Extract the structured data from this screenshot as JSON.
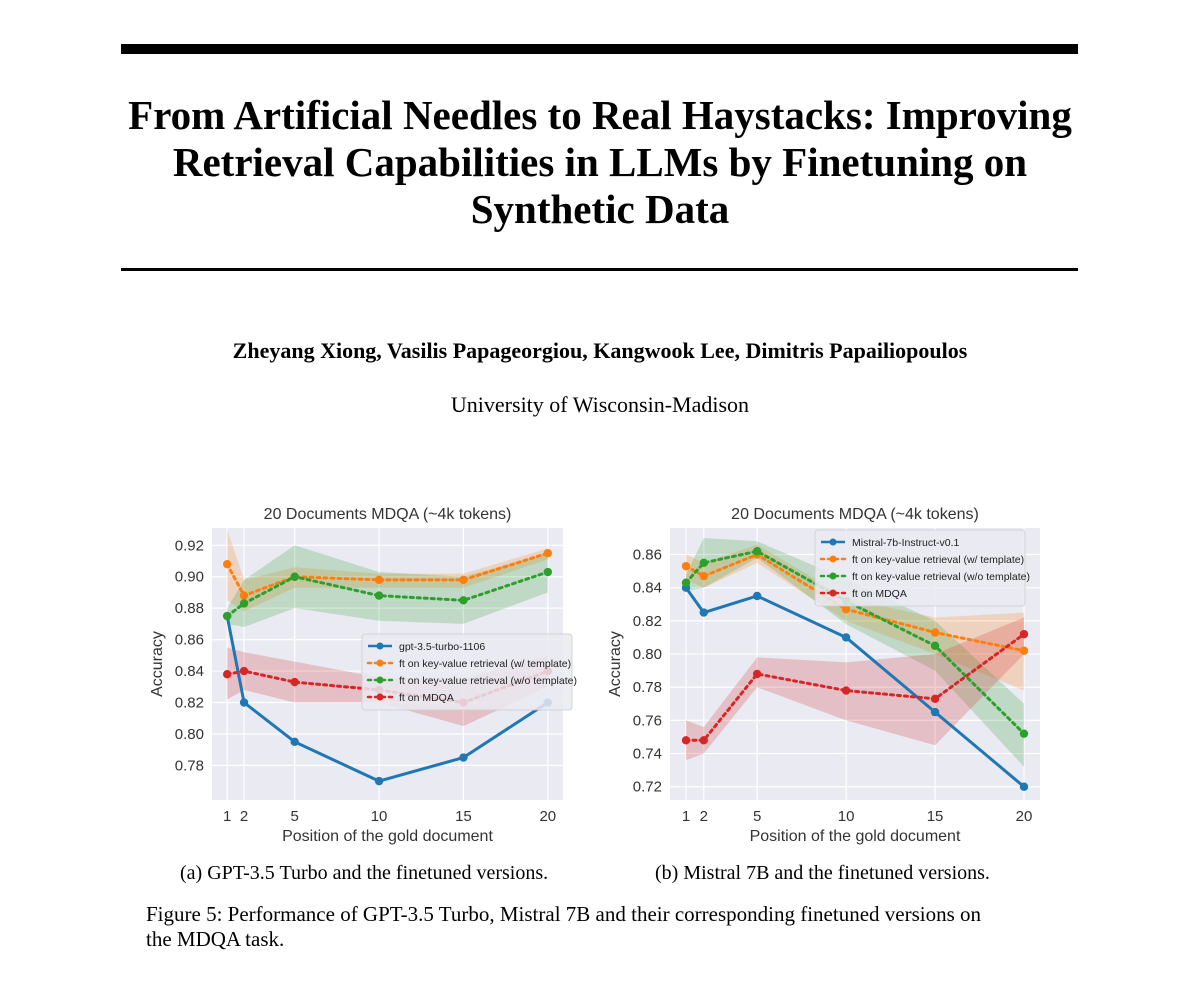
{
  "paper": {
    "title_lines": [
      "From Artificial Needles to Real Haystacks: Improving",
      "Retrieval Capabilities in LLMs by Finetuning on",
      "Synthetic Data"
    ],
    "authors": "Zheyang Xiong, Vasilis Papageorgiou, Kangwook Lee, Dimitris Papailiopoulos",
    "affiliation": "University of Wisconsin-Madison"
  },
  "figure": {
    "subcaption_a": "(a) GPT-3.5 Turbo and the finetuned versions.",
    "subcaption_b": "(b) Mistral 7B and the finetuned versions.",
    "caption_line1": "Figure 5: Performance of GPT-3.5 Turbo, Mistral 7B and their corresponding finetuned versions on",
    "caption_line2": "the MDQA task."
  },
  "colors": {
    "plot_bg": "#eaeaf2",
    "grid": "#ffffff",
    "blue": "#1f77b4",
    "orange": "#ff7f0e",
    "green": "#2ca02c",
    "red": "#d62728"
  },
  "chart_data": [
    {
      "id": "chartA",
      "type": "line",
      "title": "20 Documents MDQA (~4k tokens)",
      "xlabel": "Position of the gold document",
      "ylabel": "Accuracy",
      "x": [
        1,
        2,
        5,
        10,
        15,
        20
      ],
      "xticks": [
        1,
        2,
        5,
        10,
        15,
        20
      ],
      "xlim": [
        0.1,
        20.9
      ],
      "yticks": [
        0.78,
        0.8,
        0.82,
        0.84,
        0.86,
        0.88,
        0.9,
        0.92
      ],
      "ylim": [
        0.758,
        0.931
      ],
      "legend_position": "center-right",
      "series": [
        {
          "name": "gpt-3.5-turbo-1106",
          "color": "#1f77b4",
          "style": "solid",
          "values": [
            0.875,
            0.82,
            0.795,
            0.77,
            0.785,
            0.82
          ]
        },
        {
          "name": "ft on key-value retrieval (w/ template)",
          "color": "#ff7f0e",
          "style": "dotted",
          "values": [
            0.908,
            0.888,
            0.9,
            0.898,
            0.898,
            0.915
          ],
          "lower": [
            0.885,
            0.878,
            0.893,
            0.893,
            0.893,
            0.911
          ],
          "upper": [
            0.93,
            0.898,
            0.906,
            0.902,
            0.902,
            0.918
          ]
        },
        {
          "name": "ft on key-value retrieval (w/o template)",
          "color": "#2ca02c",
          "style": "dotted",
          "values": [
            0.875,
            0.883,
            0.9,
            0.888,
            0.885,
            0.903
          ],
          "lower": [
            0.87,
            0.868,
            0.88,
            0.872,
            0.87,
            0.89
          ],
          "upper": [
            0.88,
            0.898,
            0.92,
            0.903,
            0.9,
            0.915
          ]
        },
        {
          "name": "ft on MDQA",
          "color": "#d62728",
          "style": "dotted",
          "values": [
            0.838,
            0.84,
            0.833,
            0.828,
            0.82,
            0.84
          ],
          "lower": [
            0.822,
            0.828,
            0.82,
            0.82,
            0.805,
            0.83
          ],
          "upper": [
            0.855,
            0.852,
            0.846,
            0.836,
            0.835,
            0.85
          ]
        }
      ]
    },
    {
      "id": "chartB",
      "type": "line",
      "title": "20 Documents MDQA (~4k tokens)",
      "xlabel": "Position of the gold document",
      "ylabel": "Accuracy",
      "x": [
        1,
        2,
        5,
        10,
        15,
        20
      ],
      "xticks": [
        1,
        2,
        5,
        10,
        15,
        20
      ],
      "xlim": [
        0.1,
        20.9
      ],
      "yticks": [
        0.72,
        0.74,
        0.76,
        0.78,
        0.8,
        0.82,
        0.84,
        0.86
      ],
      "ylim": [
        0.712,
        0.876
      ],
      "legend_position": "top-right",
      "series": [
        {
          "name": "Mistral-7b-Instruct-v0.1",
          "color": "#1f77b4",
          "style": "solid",
          "values": [
            0.84,
            0.825,
            0.835,
            0.81,
            0.765,
            0.72
          ]
        },
        {
          "name": "ft on key-value retrieval (w/ template)",
          "color": "#ff7f0e",
          "style": "dotted",
          "values": [
            0.853,
            0.847,
            0.86,
            0.827,
            0.813,
            0.802
          ],
          "lower": [
            0.845,
            0.84,
            0.855,
            0.82,
            0.8,
            0.778
          ],
          "upper": [
            0.86,
            0.855,
            0.866,
            0.834,
            0.822,
            0.825
          ]
        },
        {
          "name": "ft on key-value retrieval (w/o template)",
          "color": "#2ca02c",
          "style": "dotted",
          "values": [
            0.843,
            0.855,
            0.862,
            0.832,
            0.805,
            0.752
          ],
          "lower": [
            0.838,
            0.84,
            0.858,
            0.818,
            0.79,
            0.732
          ],
          "upper": [
            0.848,
            0.87,
            0.868,
            0.845,
            0.82,
            0.77
          ]
        },
        {
          "name": "ft on MDQA",
          "color": "#d62728",
          "style": "dotted",
          "values": [
            0.748,
            0.748,
            0.788,
            0.778,
            0.773,
            0.812
          ],
          "lower": [
            0.736,
            0.74,
            0.78,
            0.76,
            0.745,
            0.8
          ],
          "upper": [
            0.76,
            0.756,
            0.798,
            0.795,
            0.8,
            0.822
          ]
        }
      ]
    }
  ]
}
